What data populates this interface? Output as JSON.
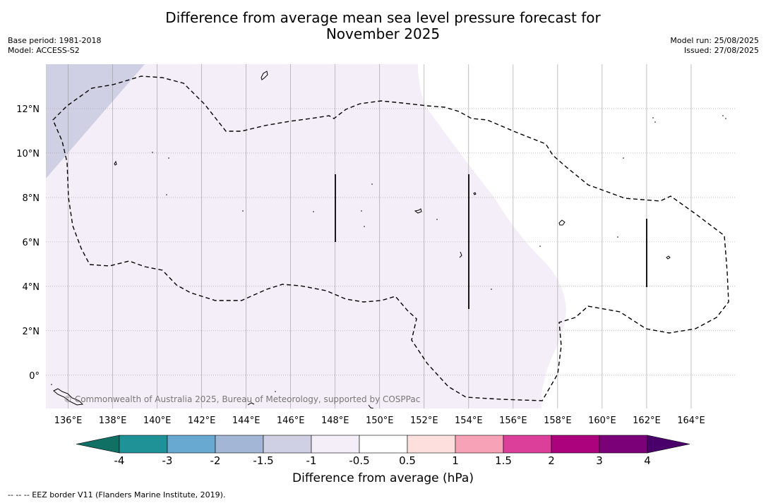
{
  "title": {
    "line1": "Difference from average mean sea level pressure forecast for",
    "line2": "November 2025"
  },
  "meta_left": {
    "base_period": "Base period: 1981-2018",
    "model": "Model: ACCESS-S2"
  },
  "meta_right": {
    "model_run": "Model run: 25/08/2025",
    "issued": "Issued: 27/08/2025"
  },
  "map": {
    "projection": "PlateCarree",
    "lon_range": [
      135,
      166
    ],
    "lat_range": [
      -1.5,
      14
    ],
    "lon_ticks": [
      "136°E",
      "138°E",
      "140°E",
      "142°E",
      "144°E",
      "146°E",
      "148°E",
      "150°E",
      "152°E",
      "154°E",
      "156°E",
      "158°E",
      "160°E",
      "162°E",
      "164°E"
    ],
    "lat_ticks": [
      "0°",
      "2°N",
      "4°N",
      "6°N",
      "8°N",
      "10°N",
      "12°N"
    ],
    "copyright": "© Commonwealth of Australia 2025, Bureau of Meteorology, supported by COSPPac",
    "colors": {
      "band_minus1p5_minus1": "#cfd0e4",
      "band_minus1_minus0p5": "#f3eef7",
      "band_minus0p5_0p5": "#ffffff",
      "eez_line": "#000000",
      "grid": "#999999"
    }
  },
  "colorbar": {
    "labels": [
      "-4",
      "-3",
      "-2",
      "-1.5",
      "-1",
      "-0.5",
      "0.5",
      "1",
      "1.5",
      "2",
      "3",
      "4"
    ],
    "colors": [
      "#1f9298",
      "#68a9d2",
      "#a4b6d6",
      "#cfd0e4",
      "#f3eef7",
      "#ffffff",
      "#fde0dd",
      "#f7a2b6",
      "#dc3f99",
      "#ac027d",
      "#7a0177"
    ],
    "under_color": "#0f7063",
    "over_color": "#49006a",
    "title": "Difference from average (hPa)"
  },
  "footnote": "--  --  -- EEZ border V11 (Flanders Marine Institute, 2019)."
}
